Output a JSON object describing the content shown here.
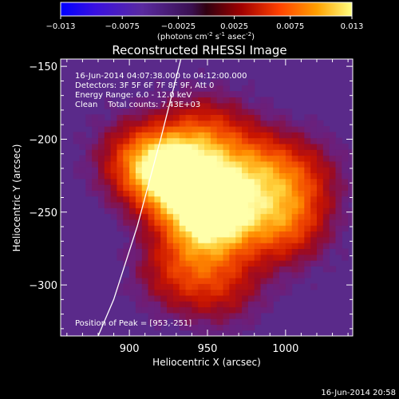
{
  "colorbar": {
    "ticks": [
      "-0.013",
      "-0.0075",
      "-0.0025",
      "0.0025",
      "0.0075",
      "0.013"
    ],
    "units_prefix": "(photons cm",
    "units_sup1": "-2",
    "units_mid": " s",
    "units_sup2": "-1",
    "units_mid2": " asec",
    "units_sup3": "-2",
    "units_suffix": ")",
    "min": -0.013,
    "max": 0.013
  },
  "chart_data": {
    "type": "heatmap",
    "title": "Reconstructed RHESSI Image",
    "xlabel": "Heliocentric X (arcsec)",
    "ylabel": "Heliocentric Y (arcsec)",
    "xlim": [
      856,
      1043
    ],
    "ylim": [
      -335,
      -145
    ],
    "x_ticks": [
      900,
      950,
      1000
    ],
    "y_ticks": [
      -150,
      -200,
      -250,
      -300
    ],
    "info_lines": [
      "16-Jun-2014 04:07:38.000 to 04:12:00.000",
      "Detectors: 3F 5F 6F 7F 8F 9F, Att 0",
      "Energy Range: 6.0 - 12.0 keV",
      "Clean    Total counts: 7.43E+03"
    ],
    "peak_label": "Position of Peak = [953,-251]",
    "peak": [
      953,
      -251
    ],
    "sources": [
      {
        "x": 953,
        "y": -251,
        "intensity": 0.013
      },
      {
        "x": 928,
        "y": -224,
        "intensity": 0.0112
      },
      {
        "x": 999,
        "y": -258,
        "intensity": 0.0068
      },
      {
        "x": 980,
        "y": -220,
        "intensity": 0.006
      },
      {
        "x": 905,
        "y": -213,
        "intensity": 0.0052
      },
      {
        "x": 950,
        "y": -195,
        "intensity": 0.005
      },
      {
        "x": 930,
        "y": -290,
        "intensity": 0.0046
      },
      {
        "x": 1010,
        "y": -225,
        "intensity": 0.0042
      },
      {
        "x": 960,
        "y": -300,
        "intensity": 0.0042
      }
    ],
    "limb_curve": [
      [
        933,
        -145
      ],
      [
        920,
        -200
      ],
      [
        905,
        -260
      ],
      [
        890,
        -310
      ],
      [
        880,
        -335
      ]
    ],
    "footer_timestamp": "16-Jun-2014 20:58"
  }
}
